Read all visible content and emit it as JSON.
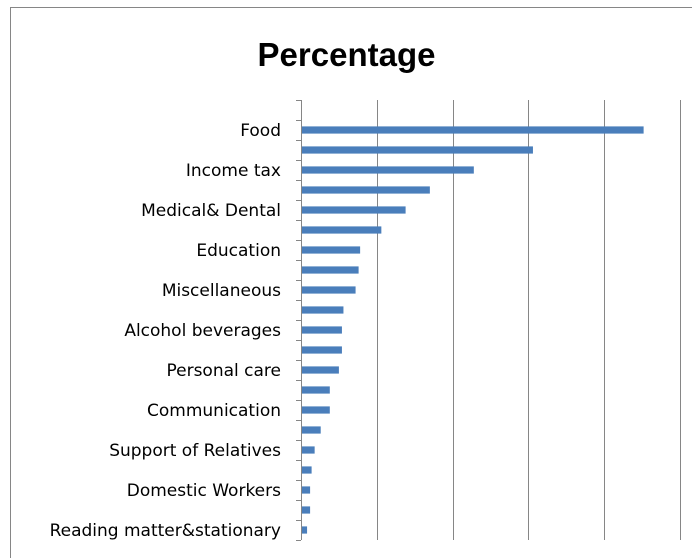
{
  "chart_data": {
    "type": "bar",
    "orientation": "horizontal",
    "title": "Percentage",
    "xlabel": "",
    "ylabel": "",
    "xlim": [
      0,
      25
    ],
    "grid": true,
    "legend": "none",
    "bar_color": "#4a7ebb",
    "categories": [
      "",
      "Food",
      "",
      "Income tax",
      "",
      "Medical& Dental",
      "",
      "Education",
      "",
      "Miscellaneous",
      "",
      "Alcohol beverages",
      "",
      "Personal care",
      "",
      "Communication",
      "",
      "Support of Relatives",
      "",
      "Domestic Workers",
      "",
      "Reading matter&stationary"
    ],
    "values": [
      0,
      22.6,
      15.3,
      11.4,
      8.5,
      6.9,
      5.3,
      3.9,
      3.8,
      3.6,
      2.8,
      2.7,
      2.7,
      2.5,
      1.9,
      1.9,
      1.3,
      0.9,
      0.7,
      0.6,
      0.6,
      0.4
    ]
  }
}
